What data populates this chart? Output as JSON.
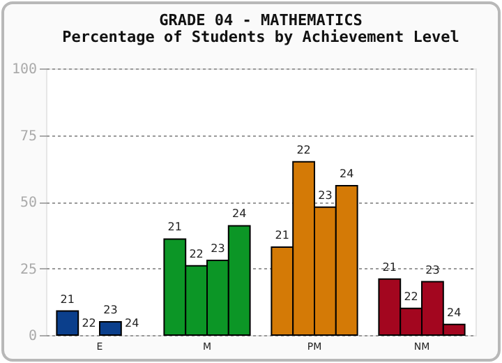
{
  "chart_data": {
    "type": "bar",
    "title": "GRADE 04 - MATHEMATICS",
    "subtitle": "Percentage of Students by Achievement Level",
    "categories": [
      "E",
      "M",
      "PM",
      "NM"
    ],
    "series": [
      {
        "name": "21",
        "colors": [
          "#0b3f8c",
          "#0c9626",
          "#d47a06",
          "#a3061f"
        ],
        "values": [
          9,
          36,
          33,
          21
        ]
      },
      {
        "name": "22",
        "colors": [
          "#0b3f8c",
          "#0c9626",
          "#d47a06",
          "#a3061f"
        ],
        "values": [
          0,
          26,
          65,
          10
        ]
      },
      {
        "name": "23",
        "colors": [
          "#0b3f8c",
          "#0c9626",
          "#d47a06",
          "#a3061f"
        ],
        "values": [
          5,
          28,
          48,
          20
        ]
      },
      {
        "name": "24",
        "colors": [
          "#0b3f8c",
          "#0c9626",
          "#d47a06",
          "#a3061f"
        ],
        "values": [
          0,
          41,
          56,
          4
        ]
      }
    ],
    "ylim": [
      0,
      100
    ],
    "yticks": [
      0,
      25,
      50,
      75,
      100
    ],
    "grid": "y"
  }
}
